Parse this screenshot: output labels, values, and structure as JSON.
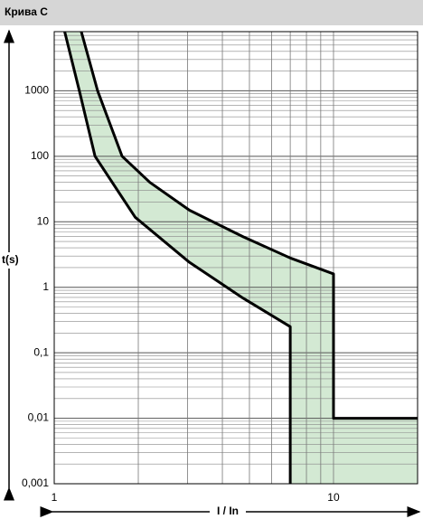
{
  "chart_data": {
    "type": "band",
    "title": "Крива C",
    "xlabel": "I / In",
    "ylabel": "t(s)",
    "xscale": "log",
    "yscale": "log",
    "xlim": [
      1,
      20
    ],
    "ylim": [
      0.001,
      8000
    ],
    "xticks": [
      1,
      10
    ],
    "yticks": [
      {
        "value": 0.001,
        "label": "0,001"
      },
      {
        "value": 0.01,
        "label": "0,01"
      },
      {
        "value": 0.1,
        "label": "0,1"
      },
      1,
      10,
      100,
      1000
    ],
    "xgrid": [
      1,
      2,
      3,
      4,
      5,
      6,
      7,
      8,
      9,
      10
    ],
    "ygrid": [
      0.001,
      0.002,
      0.003,
      0.004,
      0.005,
      0.006,
      0.007,
      0.008,
      0.009,
      0.01,
      0.02,
      0.03,
      0.04,
      0.05,
      0.06,
      0.07,
      0.08,
      0.09,
      0.1,
      0.2,
      0.3,
      0.4,
      0.5,
      0.6,
      0.7,
      0.8,
      0.9,
      1,
      2,
      3,
      4,
      5,
      6,
      7,
      8,
      9,
      10,
      20,
      30,
      40,
      50,
      60,
      70,
      80,
      90,
      100,
      200,
      300,
      400,
      500,
      600,
      700,
      800,
      900,
      1000,
      2000,
      3000,
      4000,
      5000,
      6000,
      7000,
      8000
    ],
    "fill_color": "#d3e9d3",
    "series": [
      {
        "color": "#000000",
        "x": [
          1.09,
          1.23,
          1.4,
          1.95,
          3.05,
          4.75,
          7,
          7
        ],
        "values": [
          8000,
          1000,
          100,
          11.7,
          2.4,
          0.68,
          0.25,
          0.001
        ]
      },
      {
        "color": "#000000",
        "x": [
          1.25,
          1.43,
          1.75,
          2.2,
          3.05,
          4.75,
          7,
          10,
          10,
          20
        ],
        "values": [
          8000,
          1000,
          100,
          40,
          15,
          5.9,
          2.8,
          1.6,
          0.01,
          0.01
        ]
      }
    ]
  }
}
